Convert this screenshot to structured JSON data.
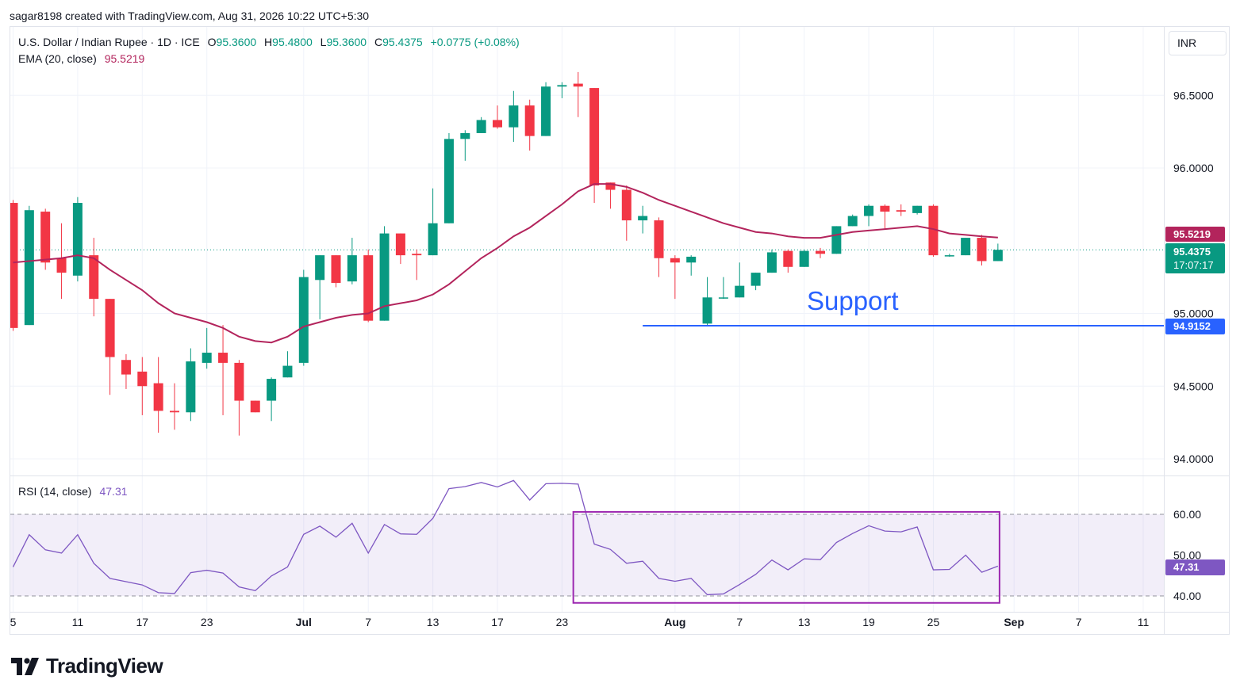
{
  "header": {
    "credit": "sagar8198 created with TradingView.com, Aug 31, 2026 10:22 UTC+5:30"
  },
  "legend": {
    "symbol": "U.S. Dollar / Indian Rupee · 1D · ICE",
    "o_label": "O",
    "o": "95.3600",
    "h_label": "H",
    "h": "95.4800",
    "l_label": "L",
    "l": "95.3600",
    "c_label": "C",
    "c": "95.4375",
    "change": "+0.0775 (+0.08%)",
    "ema_label": "EMA (20, close)",
    "ema_value": "95.5219",
    "rsi_label": "RSI (14, close)",
    "rsi_value": "47.31"
  },
  "currency": "INR",
  "price_tags": {
    "ema": "95.5219",
    "last": "95.4375",
    "countdown": "17:07:17",
    "support": "94.9152"
  },
  "annotation": {
    "support_text": "Support",
    "support_level": 94.9152
  },
  "branding": {
    "logo_text": "TradingView"
  },
  "colors": {
    "up": "#089981",
    "down": "#f23645",
    "ema": "#b3245c",
    "rsi": "#7e57c2",
    "support": "#2962ff"
  },
  "chart_data": [
    {
      "type": "candlestick",
      "title": "U.S. Dollar / Indian Rupee · 1D · ICE",
      "ylim": [
        93.85,
        96.85
      ],
      "y_ticks": [
        "94.0000",
        "94.5000",
        "95.0000",
        "96.0000",
        "96.5000"
      ],
      "x_ticks": [
        {
          "label": "5",
          "day": 4
        },
        {
          "label": "11",
          "day": 8
        },
        {
          "label": "17",
          "day": 12
        },
        {
          "label": "23",
          "day": 16
        },
        {
          "label": "Jul",
          "day": 22,
          "bold": true
        },
        {
          "label": "7",
          "day": 26
        },
        {
          "label": "13",
          "day": 30
        },
        {
          "label": "17",
          "day": 34
        },
        {
          "label": "23",
          "day": 38
        },
        {
          "label": "Aug",
          "day": 45,
          "bold": true
        },
        {
          "label": "7",
          "day": 49
        },
        {
          "label": "13",
          "day": 53
        },
        {
          "label": "19",
          "day": 57
        },
        {
          "label": "25",
          "day": 61
        },
        {
          "label": "Sep",
          "day": 66,
          "bold": true
        },
        {
          "label": "7",
          "day": 70
        },
        {
          "label": "11",
          "day": 74
        }
      ],
      "candles": [
        {
          "x": 4,
          "o": 95.76,
          "h": 95.78,
          "l": 94.88,
          "c": 94.9
        },
        {
          "x": 5,
          "o": 94.92,
          "h": 95.74,
          "l": 94.92,
          "c": 95.71
        },
        {
          "x": 6,
          "o": 95.7,
          "h": 95.72,
          "l": 95.3,
          "c": 95.35
        },
        {
          "x": 7,
          "o": 95.38,
          "h": 95.62,
          "l": 95.1,
          "c": 95.28
        },
        {
          "x": 8,
          "o": 95.26,
          "h": 95.8,
          "l": 95.22,
          "c": 95.76
        },
        {
          "x": 9,
          "o": 95.4,
          "h": 95.52,
          "l": 94.98,
          "c": 95.1
        },
        {
          "x": 10,
          "o": 95.1,
          "h": 95.1,
          "l": 94.44,
          "c": 94.7
        },
        {
          "x": 11,
          "o": 94.68,
          "h": 94.72,
          "l": 94.48,
          "c": 94.58
        },
        {
          "x": 12,
          "o": 94.6,
          "h": 94.7,
          "l": 94.3,
          "c": 94.5
        },
        {
          "x": 13,
          "o": 94.52,
          "h": 94.7,
          "l": 94.18,
          "c": 94.33
        },
        {
          "x": 14,
          "o": 94.33,
          "h": 94.52,
          "l": 94.2,
          "c": 94.32
        },
        {
          "x": 15,
          "o": 94.32,
          "h": 94.76,
          "l": 94.26,
          "c": 94.67
        },
        {
          "x": 16,
          "o": 94.66,
          "h": 94.9,
          "l": 94.62,
          "c": 94.73
        },
        {
          "x": 17,
          "o": 94.73,
          "h": 94.92,
          "l": 94.3,
          "c": 94.66
        },
        {
          "x": 18,
          "o": 94.66,
          "h": 94.68,
          "l": 94.16,
          "c": 94.4
        },
        {
          "x": 19,
          "o": 94.4,
          "h": 94.4,
          "l": 94.32,
          "c": 94.32
        },
        {
          "x": 20,
          "o": 94.4,
          "h": 94.56,
          "l": 94.26,
          "c": 94.55
        },
        {
          "x": 21,
          "o": 94.56,
          "h": 94.74,
          "l": 94.56,
          "c": 94.64
        },
        {
          "x": 22,
          "o": 94.66,
          "h": 95.3,
          "l": 94.64,
          "c": 95.25
        },
        {
          "x": 23,
          "o": 95.23,
          "h": 95.4,
          "l": 94.96,
          "c": 95.4
        },
        {
          "x": 24,
          "o": 95.4,
          "h": 95.4,
          "l": 95.18,
          "c": 95.21
        },
        {
          "x": 25,
          "o": 95.22,
          "h": 95.52,
          "l": 95.2,
          "c": 95.4
        },
        {
          "x": 26,
          "o": 95.4,
          "h": 95.44,
          "l": 94.94,
          "c": 94.95
        },
        {
          "x": 27,
          "o": 94.95,
          "h": 95.6,
          "l": 94.95,
          "c": 95.55
        },
        {
          "x": 28,
          "o": 95.55,
          "h": 95.55,
          "l": 95.34,
          "c": 95.4
        },
        {
          "x": 29,
          "o": 95.41,
          "h": 95.44,
          "l": 95.23,
          "c": 95.4
        },
        {
          "x": 30,
          "o": 95.4,
          "h": 95.86,
          "l": 95.4,
          "c": 95.62
        },
        {
          "x": 31,
          "o": 95.62,
          "h": 96.24,
          "l": 95.62,
          "c": 96.2
        },
        {
          "x": 32,
          "o": 96.2,
          "h": 96.26,
          "l": 96.05,
          "c": 96.24
        },
        {
          "x": 33,
          "o": 96.24,
          "h": 96.35,
          "l": 96.24,
          "c": 96.33
        },
        {
          "x": 34,
          "o": 96.33,
          "h": 96.43,
          "l": 96.27,
          "c": 96.28
        },
        {
          "x": 35,
          "o": 96.28,
          "h": 96.53,
          "l": 96.18,
          "c": 96.43
        },
        {
          "x": 36,
          "o": 96.43,
          "h": 96.47,
          "l": 96.12,
          "c": 96.22
        },
        {
          "x": 37,
          "o": 96.22,
          "h": 96.59,
          "l": 96.22,
          "c": 96.56
        },
        {
          "x": 38,
          "o": 96.56,
          "h": 96.59,
          "l": 96.48,
          "c": 96.57
        },
        {
          "x": 39,
          "o": 96.58,
          "h": 96.66,
          "l": 96.35,
          "c": 96.56
        },
        {
          "x": 40,
          "o": 96.55,
          "h": 96.55,
          "l": 95.76,
          "c": 95.88
        },
        {
          "x": 41,
          "o": 95.9,
          "h": 95.9,
          "l": 95.72,
          "c": 95.85
        },
        {
          "x": 42,
          "o": 95.85,
          "h": 95.88,
          "l": 95.5,
          "c": 95.64
        },
        {
          "x": 43,
          "o": 95.64,
          "h": 95.74,
          "l": 95.55,
          "c": 95.67
        },
        {
          "x": 44,
          "o": 95.64,
          "h": 95.66,
          "l": 95.25,
          "c": 95.38
        },
        {
          "x": 45,
          "o": 95.38,
          "h": 95.4,
          "l": 95.1,
          "c": 95.35
        },
        {
          "x": 46,
          "o": 95.35,
          "h": 95.4,
          "l": 95.26,
          "c": 95.39
        },
        {
          "x": 47,
          "o": 94.93,
          "h": 95.25,
          "l": 94.91,
          "c": 95.11
        },
        {
          "x": 48,
          "o": 95.11,
          "h": 95.25,
          "l": 95.1,
          "c": 95.11
        },
        {
          "x": 49,
          "o": 95.11,
          "h": 95.35,
          "l": 95.11,
          "c": 95.19
        },
        {
          "x": 50,
          "o": 95.19,
          "h": 95.28,
          "l": 95.16,
          "c": 95.28
        },
        {
          "x": 51,
          "o": 95.28,
          "h": 95.44,
          "l": 95.28,
          "c": 95.42
        },
        {
          "x": 52,
          "o": 95.43,
          "h": 95.44,
          "l": 95.28,
          "c": 95.32
        },
        {
          "x": 53,
          "o": 95.32,
          "h": 95.44,
          "l": 95.32,
          "c": 95.43
        },
        {
          "x": 54,
          "o": 95.43,
          "h": 95.45,
          "l": 95.38,
          "c": 95.41
        },
        {
          "x": 55,
          "o": 95.41,
          "h": 95.6,
          "l": 95.41,
          "c": 95.6
        },
        {
          "x": 56,
          "o": 95.6,
          "h": 95.68,
          "l": 95.6,
          "c": 95.67
        },
        {
          "x": 57,
          "o": 95.67,
          "h": 95.75,
          "l": 95.6,
          "c": 95.74
        },
        {
          "x": 58,
          "o": 95.74,
          "h": 95.75,
          "l": 95.58,
          "c": 95.7
        },
        {
          "x": 59,
          "o": 95.71,
          "h": 95.75,
          "l": 95.67,
          "c": 95.7
        },
        {
          "x": 60,
          "o": 95.69,
          "h": 95.74,
          "l": 95.68,
          "c": 95.74
        },
        {
          "x": 61,
          "o": 95.74,
          "h": 95.75,
          "l": 95.39,
          "c": 95.4
        },
        {
          "x": 62,
          "o": 95.4,
          "h": 95.41,
          "l": 95.39,
          "c": 95.4
        },
        {
          "x": 63,
          "o": 95.4,
          "h": 95.52,
          "l": 95.4,
          "c": 95.52
        },
        {
          "x": 64,
          "o": 95.52,
          "h": 95.54,
          "l": 95.33,
          "c": 95.36
        },
        {
          "x": 65,
          "o": 95.36,
          "h": 95.48,
          "l": 95.36,
          "c": 95.4375
        }
      ],
      "ema": {
        "name": "EMA (20, close)",
        "x": [
          4,
          5,
          6,
          7,
          8,
          9,
          10,
          11,
          12,
          13,
          14,
          15,
          16,
          17,
          18,
          19,
          20,
          21,
          22,
          23,
          24,
          25,
          26,
          27,
          28,
          29,
          30,
          31,
          32,
          33,
          34,
          35,
          36,
          37,
          38,
          39,
          40,
          41,
          42,
          43,
          44,
          45,
          46,
          47,
          48,
          49,
          50,
          51,
          52,
          53,
          54,
          55,
          56,
          57,
          58,
          59,
          60,
          61,
          62,
          63,
          64,
          65
        ],
        "values": [
          95.35,
          95.36,
          95.37,
          95.38,
          95.4,
          95.38,
          95.3,
          95.23,
          95.16,
          95.07,
          95.0,
          94.97,
          94.94,
          94.9,
          94.84,
          94.81,
          94.8,
          94.84,
          94.91,
          94.94,
          94.97,
          94.99,
          95.0,
          95.05,
          95.07,
          95.09,
          95.13,
          95.2,
          95.29,
          95.38,
          95.45,
          95.53,
          95.59,
          95.67,
          95.75,
          95.84,
          95.89,
          95.89,
          95.87,
          95.83,
          95.78,
          95.74,
          95.7,
          95.66,
          95.62,
          95.59,
          95.56,
          95.55,
          95.53,
          95.52,
          95.52,
          95.54,
          95.56,
          95.57,
          95.58,
          95.59,
          95.6,
          95.58,
          95.55,
          95.54,
          95.53,
          95.5219
        ]
      },
      "support_line": {
        "value": 94.9152,
        "x_start": 43,
        "x_end": 65.5
      }
    },
    {
      "type": "line",
      "title": "RSI (14, close)",
      "ylim": [
        36,
        67
      ],
      "y_ticks": [
        "40.00",
        "50.00",
        "60.00"
      ],
      "bands": [
        40,
        60
      ],
      "series": [
        {
          "name": "RSI (14, close)",
          "x": [
            4,
            5,
            6,
            7,
            8,
            9,
            10,
            11,
            12,
            13,
            14,
            15,
            16,
            17,
            18,
            19,
            20,
            21,
            22,
            23,
            24,
            25,
            26,
            27,
            28,
            29,
            30,
            31,
            32,
            33,
            34,
            35,
            36,
            37,
            38,
            39,
            40,
            41,
            42,
            43,
            44,
            45,
            46,
            47,
            48,
            49,
            50,
            51,
            52,
            53,
            54,
            55,
            56,
            57,
            58,
            59,
            60,
            61,
            62,
            63,
            64,
            65
          ],
          "values": [
            47.1,
            55.0,
            51.3,
            50.5,
            55.0,
            48.0,
            44.3,
            43.5,
            42.7,
            40.8,
            40.6,
            45.7,
            46.3,
            45.6,
            42.2,
            41.3,
            44.9,
            47.1,
            55.1,
            57.1,
            54.4,
            57.8,
            50.5,
            57.5,
            55.2,
            55.1,
            59.0,
            66.3,
            66.8,
            67.8,
            66.7,
            68.3,
            63.5,
            67.5,
            67.6,
            67.4,
            52.7,
            51.4,
            48.0,
            48.5,
            44.3,
            43.6,
            44.3,
            40.3,
            40.5,
            42.8,
            45.3,
            48.8,
            46.4,
            49.1,
            48.9,
            53.1,
            55.3,
            57.2,
            55.9,
            55.7,
            56.9,
            46.4,
            46.5,
            50.0,
            45.8,
            47.31
          ]
        }
      ],
      "highlight_box": {
        "x_start": 38.7,
        "x_end": 65.1,
        "y_low": 38.3,
        "y_high": 60.6
      }
    }
  ]
}
